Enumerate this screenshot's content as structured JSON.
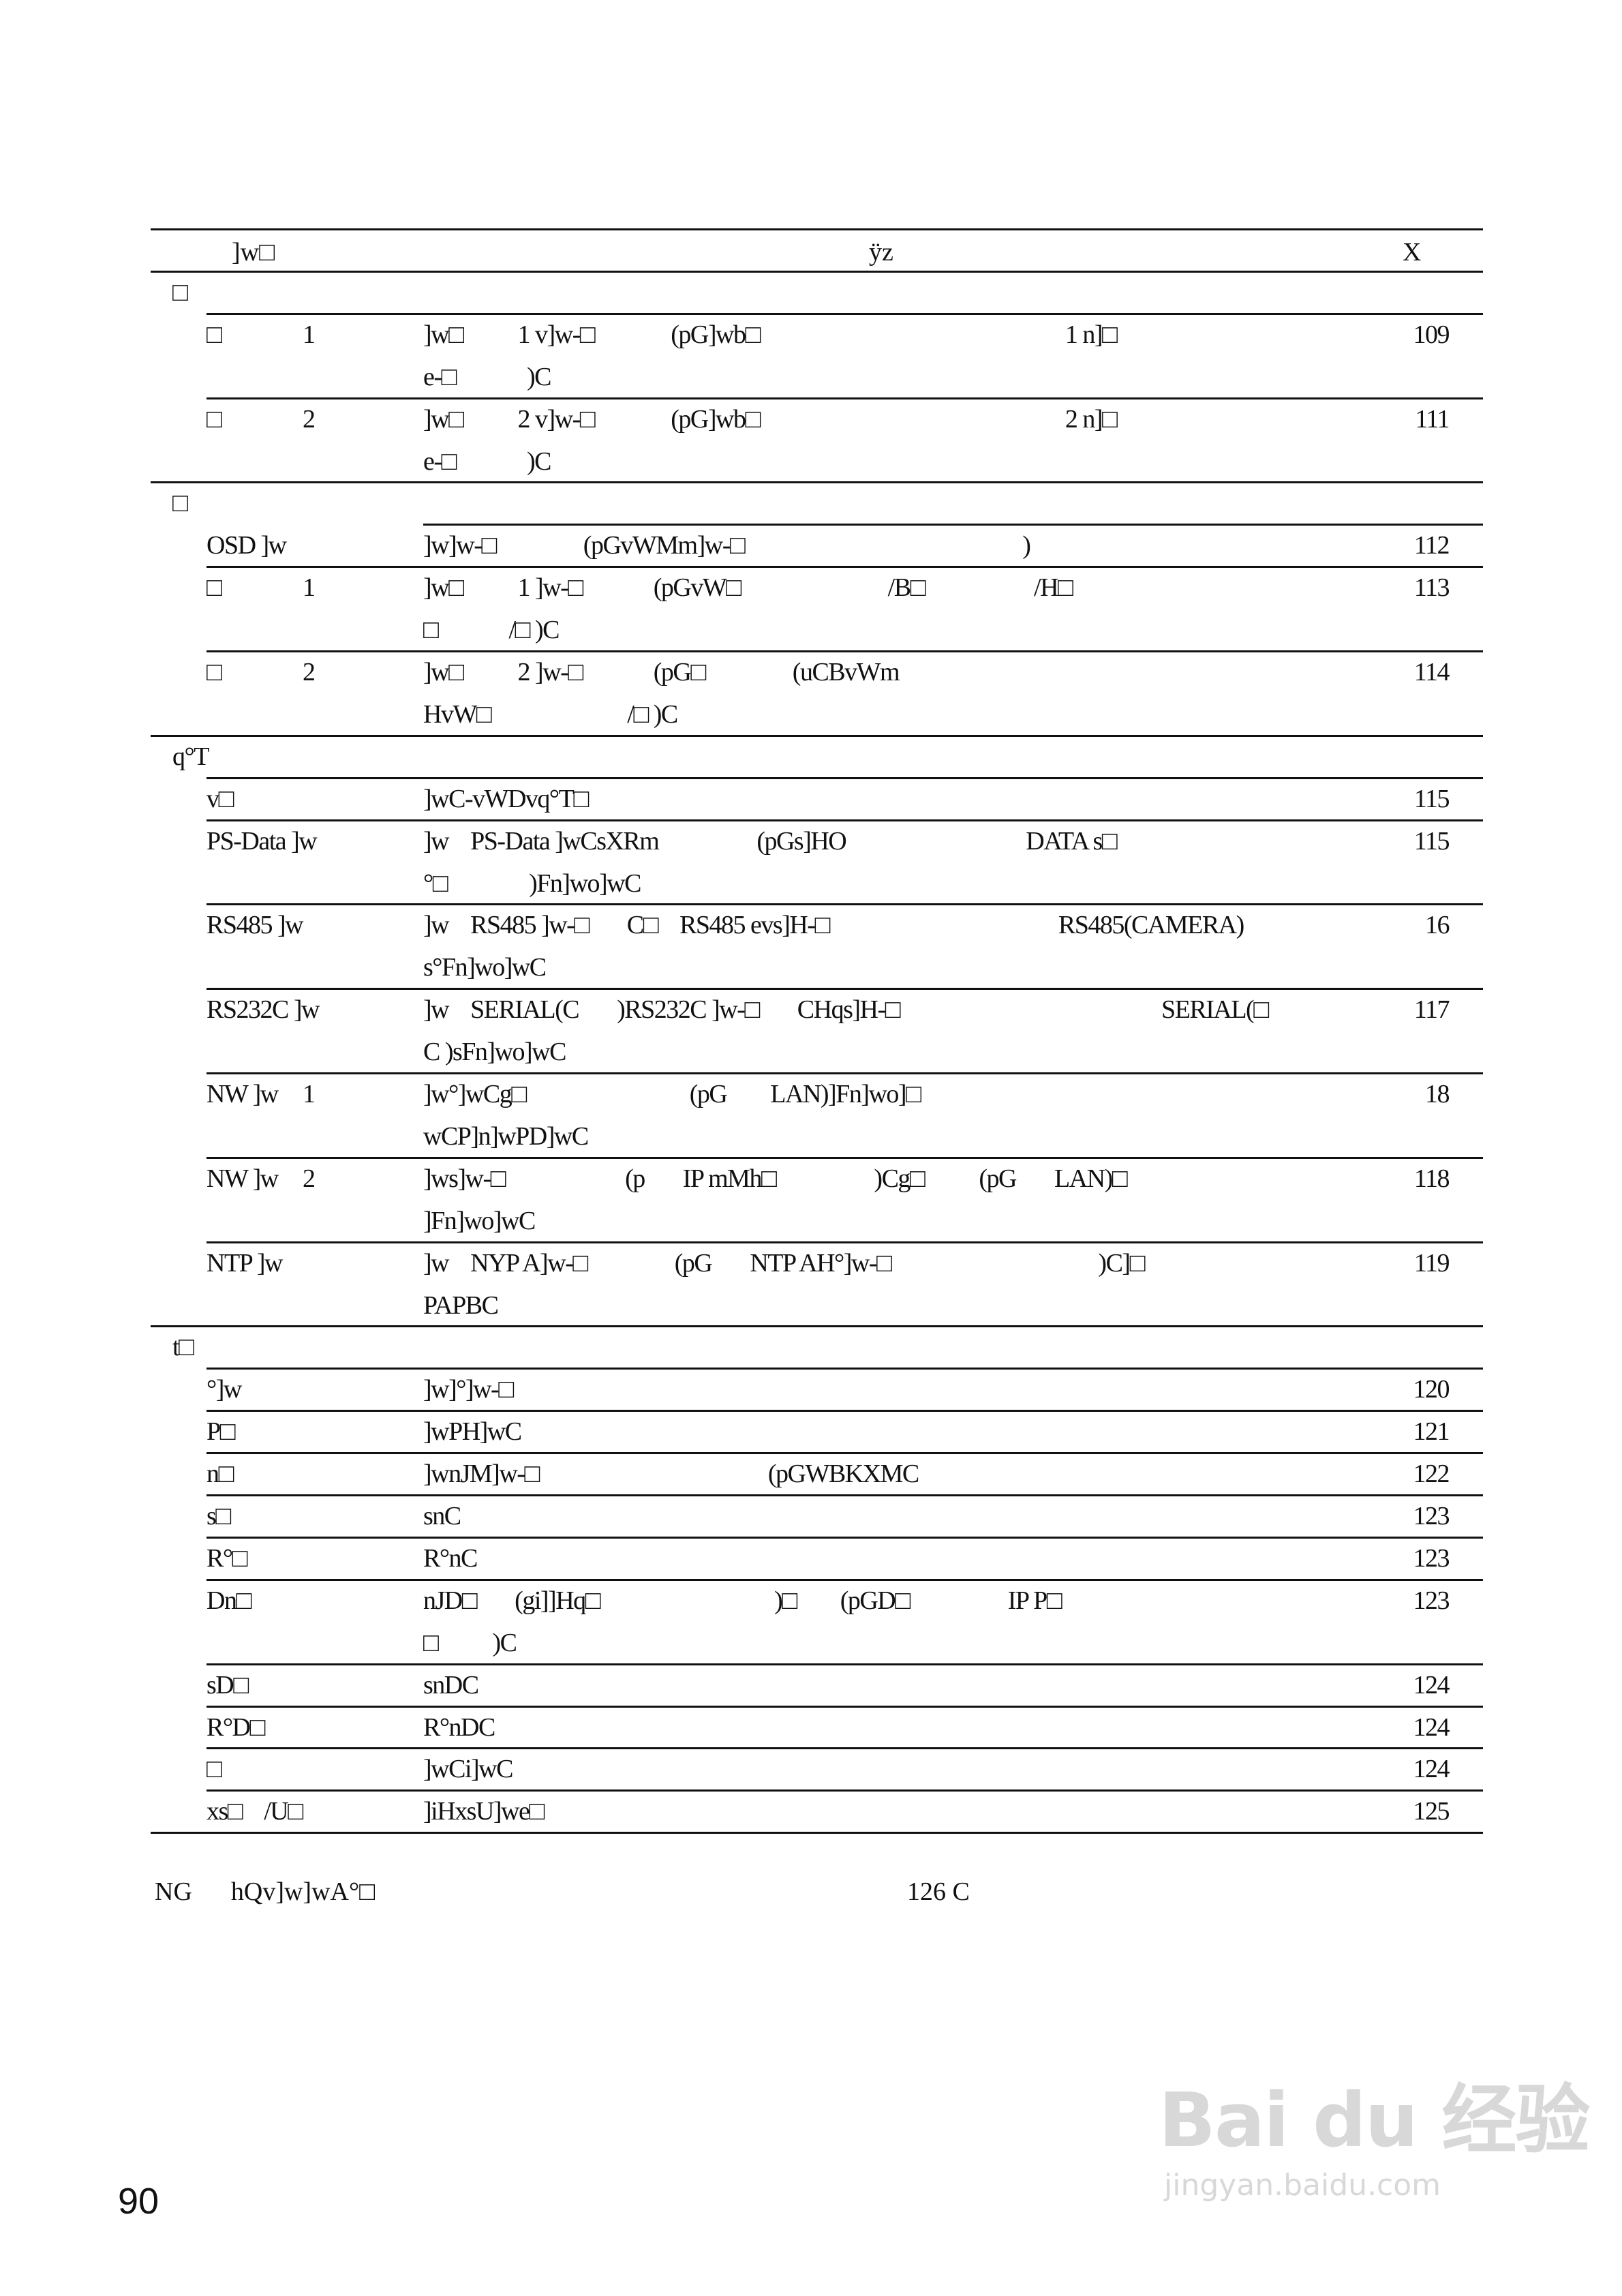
{
  "header": {
    "col_name": "]w□",
    "col_desc": "ÿz",
    "col_page": "X"
  },
  "sections": [
    {
      "heading": "□",
      "items": [
        {
          "label": "□",
          "num": "1",
          "lines": [
            "]w□          1 v]w-□              (pG]wb□                                                        1 n]□",
            "e-□             )C"
          ],
          "page": "109"
        },
        {
          "label": "□",
          "num": "2",
          "lines": [
            "]w□          2 v]w-□              (pG]wb□                                                        2 n]□",
            "e-□             )C"
          ],
          "page": "111"
        }
      ]
    },
    {
      "heading": "□",
      "items": [
        {
          "label": "OSD ]w",
          "num": "",
          "lines": [
            "]w]w-□                (pGvWMm]w-□                                                   )"
          ],
          "page": "112"
        },
        {
          "label": "□",
          "num": "1",
          "lines": [
            "]w□          1 ]w-□             (pGvW□                           /B□                    /H□",
            "□             /□ )C"
          ],
          "page": "113"
        },
        {
          "label": "□",
          "num": "2",
          "lines": [
            "]w□          2 ]w-□             (pG□                (uCBvWm",
            "HvW□                         /□ )C"
          ],
          "page": "114"
        }
      ]
    },
    {
      "heading": "q°T",
      "items": [
        {
          "label": "v□",
          "num": "",
          "lines": [
            "]wC-vWDvq°T□"
          ],
          "page": "115"
        },
        {
          "label": "PS-Data ]w",
          "num": "",
          "lines": [
            "]w    PS-Data ]wCsXRm                  (pGs]HO                                 DATA s□",
            "°□               )Fn]wo]wC"
          ],
          "page": "115"
        },
        {
          "label": "RS485 ]w",
          "num": "",
          "lines": [
            "]w    RS485 ]w-□       C□    RS485 evs]H-□                                          RS485(CAMERA)",
            "s°Fn]wo]wC"
          ],
          "page": "16"
        },
        {
          "label": "RS232C ]w",
          "num": "",
          "lines": [
            "]w    SERIAL(C       )RS232C ]w-□       CHqs]H-□                                                SERIAL(□",
            "C )sFn]wo]wC"
          ],
          "page": "117"
        },
        {
          "label": "NW ]w",
          "num": "1",
          "lines": [
            "]w°]wCg□                              (pG        LAN)]Fn]wo]□",
            "wCP]n]wPD]wC"
          ],
          "page": "18"
        },
        {
          "label": "NW ]w",
          "num": "2",
          "lines": [
            "]ws]w-□                      (p       IP mMh□                  )Cg□          (pG       LAN)□",
            "]Fn]wo]wC"
          ],
          "page": "118"
        },
        {
          "label": "NTP ]w",
          "num": "",
          "lines": [
            "]w    NYP A]w-□                (pG       NTP AH°]w-□                                      )C]□",
            "PAPBC"
          ],
          "page": "119"
        }
      ]
    },
    {
      "heading": "t□",
      "items": [
        {
          "label": "°]w",
          "num": "",
          "lines": [
            "]w]°]w-□"
          ],
          "page": "120"
        },
        {
          "label": "P□",
          "num": "",
          "lines": [
            "]wPH]wC"
          ],
          "page": "121"
        },
        {
          "label": "n□",
          "num": "",
          "lines": [
            "]wnJM]w-□                                          (pGWBKXMC"
          ],
          "page": "122"
        },
        {
          "label": "s□",
          "num": "",
          "lines": [
            "snC"
          ],
          "page": "123"
        },
        {
          "label": "R°□",
          "num": "",
          "lines": [
            "R°nC"
          ],
          "page": "123"
        },
        {
          "label": "Dn□",
          "num": "",
          "lines": [
            "nJD□       (gi]]Hq□                                )□        (pGD□                  IP P□",
            "□          )C"
          ],
          "page": "123"
        },
        {
          "label": "sD□",
          "num": "",
          "lines": [
            "snDC"
          ],
          "page": "124"
        },
        {
          "label": "R°D□",
          "num": "",
          "lines": [
            "R°nDC"
          ],
          "page": "124"
        },
        {
          "label": "□",
          "num": "",
          "lines": [
            "]wCi]wC"
          ],
          "page": "124"
        },
        {
          "label": "xs□    /U□",
          "num": "",
          "lines": [
            "]iHxsU]we□"
          ],
          "page": "125"
        }
      ]
    }
  ],
  "footnote": {
    "text": "NG      hQv]w]wA°□",
    "page_ref": "126 C"
  },
  "page_number": "90",
  "watermark": {
    "brand": "Bai du 经验",
    "url": "jingyan.baidu.com"
  }
}
